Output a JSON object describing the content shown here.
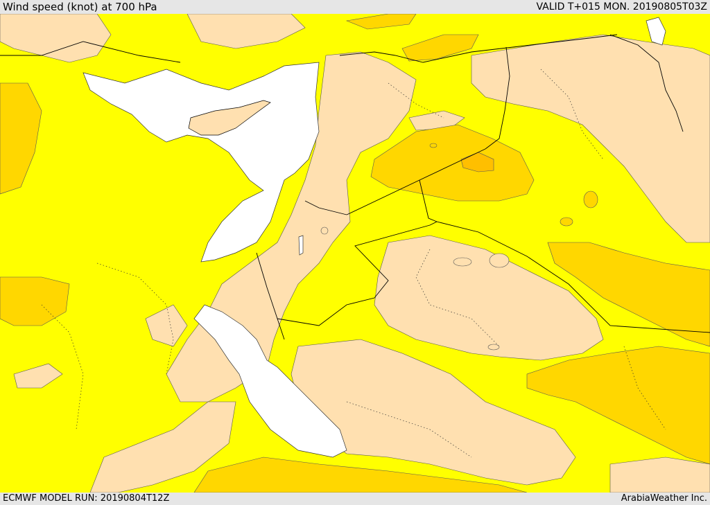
{
  "header": {
    "title": "Wind speed (knot) at 700 hPa",
    "valid": "VALID T+015 MON. 20190805T03Z"
  },
  "footer": {
    "model_run": "ECMWF MODEL RUN: 20190804T12Z",
    "credit": "ArabiaWeather Inc."
  },
  "colors": {
    "sea": "#ffffff",
    "band_low": "#ffe0b0",
    "band_mid": "#ffff00",
    "band_high": "#ffd700",
    "band_max": "#ffbf00",
    "border": "#000000"
  }
}
